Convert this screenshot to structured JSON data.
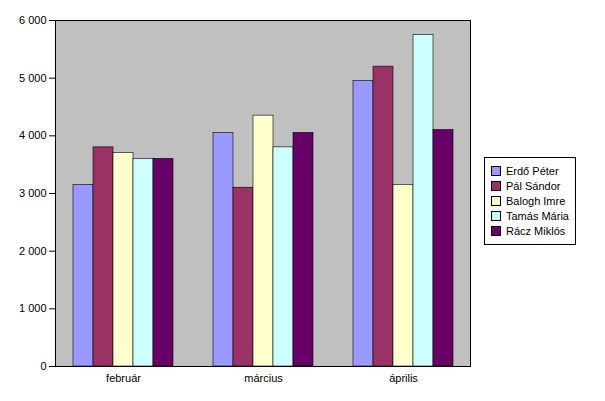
{
  "chart_data": {
    "type": "bar",
    "categories": [
      "február",
      "március",
      "április"
    ],
    "series": [
      {
        "name": "Erdő Péter",
        "color": "#9999ff",
        "values": [
          3150,
          4050,
          4950
        ]
      },
      {
        "name": "Pál Sándor",
        "color": "#993366",
        "values": [
          3800,
          3100,
          5200
        ]
      },
      {
        "name": "Balogh Imre",
        "color": "#ffffcc",
        "values": [
          3700,
          4350,
          3150
        ]
      },
      {
        "name": "Tamás Mária",
        "color": "#ccffff",
        "values": [
          3600,
          3800,
          5750
        ]
      },
      {
        "name": "Rácz Miklós",
        "color": "#660066",
        "values": [
          3600,
          4050,
          4100
        ]
      }
    ],
    "ylim": [
      0,
      6000
    ],
    "yticks": [
      0,
      {
        "value": 1000,
        "label": "1 000"
      },
      {
        "value": 2000,
        "label": "2 000"
      },
      {
        "value": 3000,
        "label": "3 000"
      },
      {
        "value": 4000,
        "label": "4 000"
      },
      {
        "value": 5000,
        "label": "5 000"
      },
      {
        "value": 6000,
        "label": "6 000"
      }
    ],
    "grid": false,
    "legend": "right"
  }
}
